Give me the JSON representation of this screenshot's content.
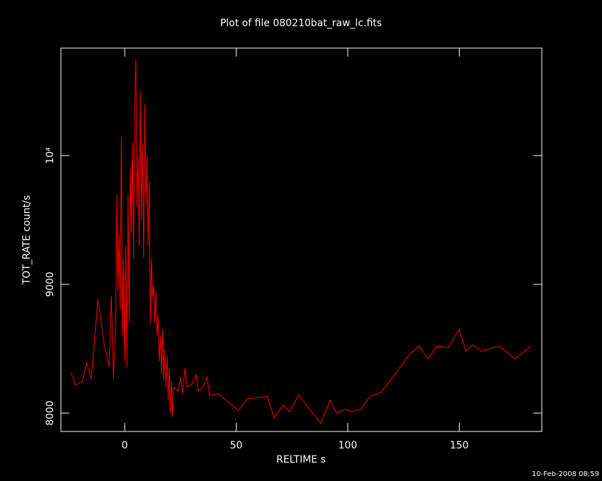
{
  "chart_data": {
    "type": "line",
    "title": "Plot of file 080210bat_raw_lc.fits",
    "x_label": "RELTIME  s",
    "y_label": "TOT_RATE  count/s",
    "footer": "10-Feb-2008 08:59",
    "color": "#ff0000",
    "xlim": [
      -28.6,
      187
    ],
    "ylim": [
      7857,
      10835
    ],
    "xticks": [
      0,
      50,
      100,
      150
    ],
    "yticks": [
      8000,
      9000,
      {
        "value": 10000,
        "label": "10⁴"
      }
    ],
    "x": [
      -24,
      -22,
      -19,
      -17,
      -15,
      -12,
      -9,
      -7,
      -6,
      -5,
      -4,
      -3.5,
      -3,
      -2.5,
      -2,
      -1.5,
      -1,
      -0.5,
      0,
      0.5,
      1,
      1.5,
      2,
      2.5,
      3,
      3.5,
      4,
      4.5,
      5,
      5.5,
      6,
      6.5,
      7,
      7.5,
      8,
      8.5,
      9,
      9.5,
      10,
      10.5,
      11,
      11.5,
      12,
      12.5,
      13,
      13.5,
      14,
      14.5,
      15,
      15.5,
      16,
      16.5,
      17,
      17.5,
      18,
      18.5,
      19,
      19.5,
      20,
      20.5,
      21,
      21.5,
      22,
      24,
      25,
      26,
      27,
      28,
      30,
      32,
      33,
      35,
      37,
      38,
      42,
      51,
      55,
      60,
      64,
      67,
      71,
      74,
      78,
      82,
      88,
      92,
      95,
      99,
      102,
      106,
      110,
      115,
      128,
      132,
      136,
      140,
      145,
      150,
      153,
      156,
      160,
      168,
      175,
      182
    ],
    "values": [
      8313,
      8214,
      8247,
      8390,
      8264,
      8885,
      8516,
      8368,
      8912,
      8269,
      8700,
      9700,
      8950,
      9400,
      8800,
      10150,
      8600,
      9200,
      8400,
      9300,
      8350,
      9700,
      8700,
      9900,
      9400,
      10100,
      9200,
      10350,
      10750,
      9600,
      10000,
      9300,
      10500,
      9500,
      10100,
      9200,
      10400,
      9600,
      10000,
      9300,
      9800,
      8700,
      9200,
      8900,
      9000,
      8700,
      8950,
      8600,
      8750,
      8400,
      8600,
      8300,
      8650,
      8250,
      8500,
      8200,
      8450,
      8100,
      8350,
      8000,
      8250,
      7970,
      8200,
      8170,
      8280,
      8150,
      8350,
      8200,
      8220,
      8300,
      8170,
      8200,
      8280,
      8140,
      8150,
      8020,
      8110,
      8120,
      8130,
      7960,
      8060,
      8010,
      8140,
      8050,
      7920,
      8100,
      8000,
      8030,
      8010,
      8030,
      8130,
      8160,
      8460,
      8520,
      8420,
      8520,
      8510,
      8650,
      8480,
      8530,
      8480,
      8520,
      8420,
      8520
    ]
  }
}
